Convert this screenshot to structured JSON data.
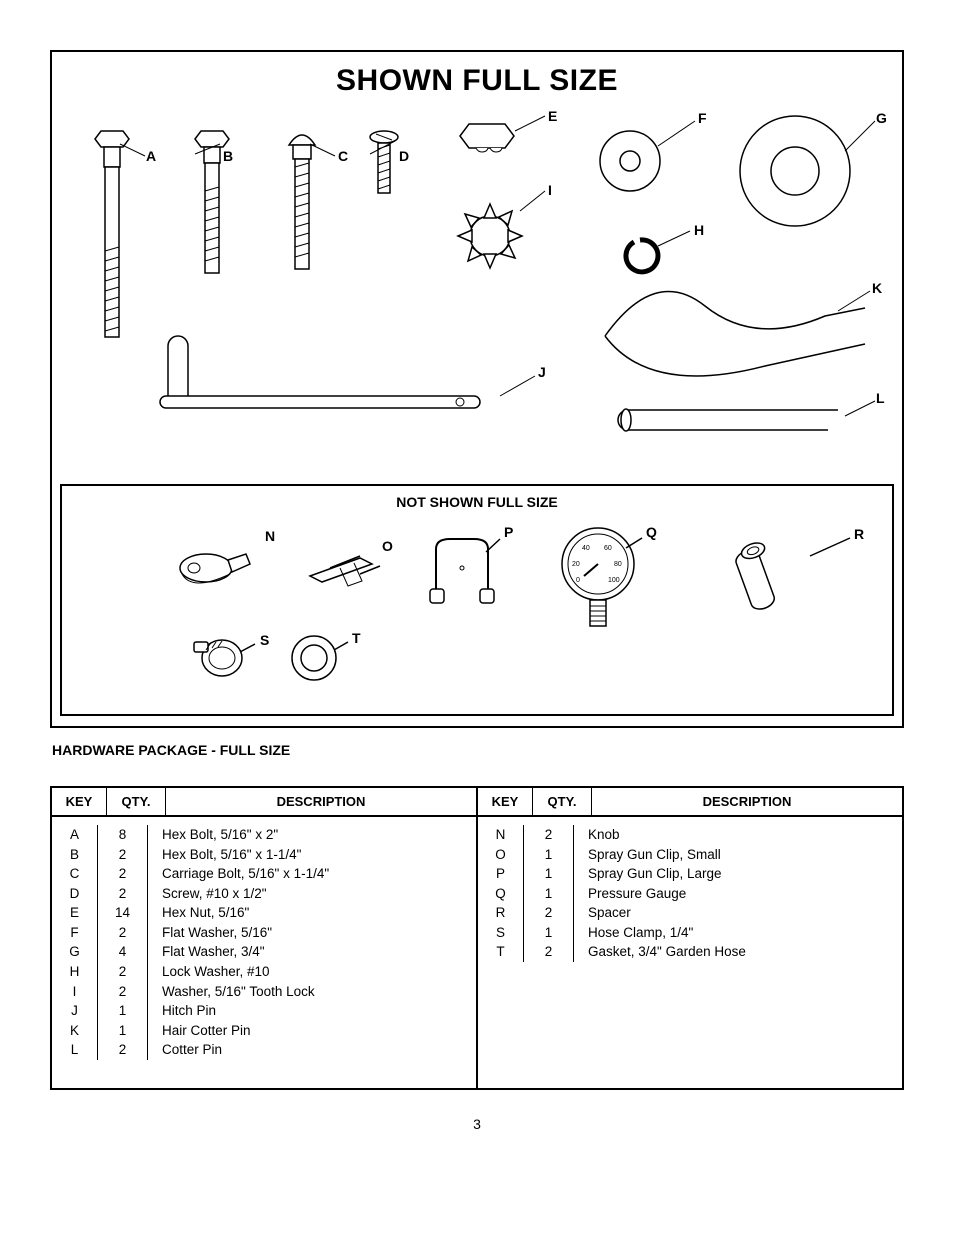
{
  "title": "SHOWN FULL SIZE",
  "subtitle": "NOT SHOWN FULL SIZE",
  "section_header": "HARDWARE PACKAGE - FULL SIZE",
  "page_number": "3",
  "labels_top": {
    "A": "A",
    "B": "B",
    "C": "C",
    "D": "D",
    "E": "E",
    "F": "F",
    "G": "G",
    "H": "H",
    "I": "I",
    "J": "J",
    "K": "K",
    "L": "L"
  },
  "labels_bottom": {
    "N": "N",
    "O": "O",
    "P": "P",
    "Q": "Q",
    "R": "R",
    "S": "S",
    "T": "T"
  },
  "table": {
    "headers": {
      "key": "KEY",
      "qty": "QTY.",
      "desc": "DESCRIPTION"
    },
    "left": [
      {
        "k": "A",
        "q": "8",
        "d": "Hex Bolt, 5/16\" x 2\""
      },
      {
        "k": "B",
        "q": "2",
        "d": "Hex Bolt, 5/16\" x 1-1/4\""
      },
      {
        "k": "C",
        "q": "2",
        "d": "Carriage Bolt, 5/16\" x 1-1/4\""
      },
      {
        "k": "D",
        "q": "2",
        "d": "Screw, #10 x 1/2\""
      },
      {
        "k": "E",
        "q": "14",
        "d": "Hex Nut, 5/16\""
      },
      {
        "k": "F",
        "q": "2",
        "d": "Flat Washer, 5/16\""
      },
      {
        "k": "G",
        "q": "4",
        "d": "Flat Washer, 3/4\""
      },
      {
        "k": "H",
        "q": "2",
        "d": "Lock Washer, #10"
      },
      {
        "k": "I",
        "q": "2",
        "d": "Washer, 5/16\" Tooth Lock"
      },
      {
        "k": "J",
        "q": "1",
        "d": "Hitch Pin"
      },
      {
        "k": "K",
        "q": "1",
        "d": "Hair Cotter Pin"
      },
      {
        "k": "L",
        "q": "2",
        "d": "Cotter Pin"
      }
    ],
    "right": [
      {
        "k": "N",
        "q": "2",
        "d": "Knob"
      },
      {
        "k": "O",
        "q": "1",
        "d": "Spray Gun Clip, Small"
      },
      {
        "k": "P",
        "q": "1",
        "d": "Spray Gun Clip, Large"
      },
      {
        "k": "Q",
        "q": "1",
        "d": "Pressure Gauge"
      },
      {
        "k": "R",
        "q": "2",
        "d": "Spacer"
      },
      {
        "k": "S",
        "q": "1",
        "d": "Hose Clamp, 1/4\""
      },
      {
        "k": "T",
        "q": "2",
        "d": "Gasket, 3/4\" Garden Hose"
      }
    ]
  },
  "style": {
    "stroke": "#000000",
    "fill": "#ffffff",
    "stroke_width": 1.5,
    "font_size_title": 30,
    "font_size_label": 14,
    "font_size_table": 13.5
  }
}
